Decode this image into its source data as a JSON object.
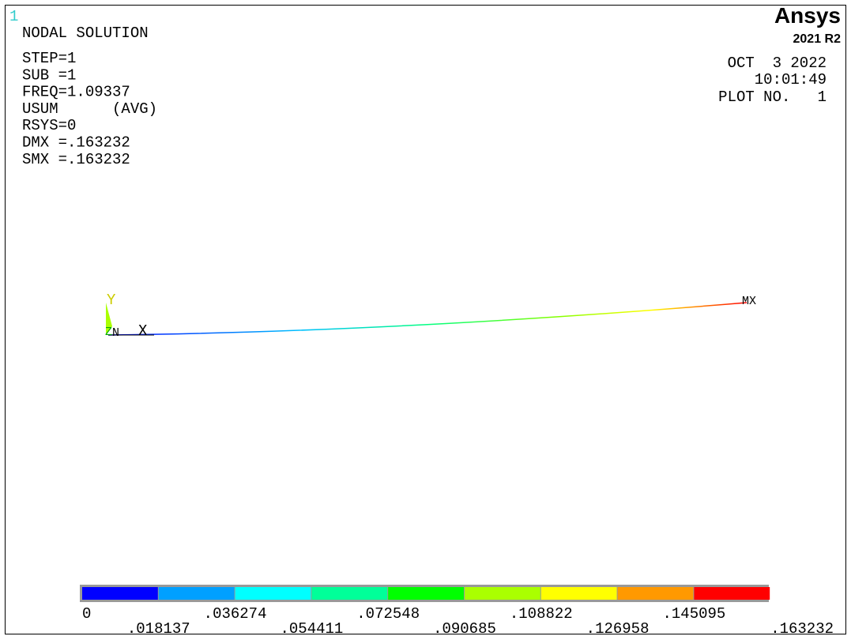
{
  "window_number": "1",
  "header": {
    "title": "NODAL SOLUTION",
    "info": [
      "STEP=1",
      "SUB =1",
      "FREQ=1.09337",
      "USUM      (AVG)",
      "RSYS=0",
      "DMX =.163232",
      "SMX =.163232"
    ]
  },
  "brand": {
    "name": "Ansys",
    "version": "2021 R2"
  },
  "stamp": {
    "date": "OCT  3 2022",
    "time": "10:01:49",
    "plot": "PLOT NO.   1"
  },
  "triad": {
    "y": "Y",
    "x": "X",
    "z": "Z",
    "node": "N"
  },
  "max_marker": "MX",
  "legend": {
    "colors": [
      "#0000ff",
      "#00a0ff",
      "#00ffff",
      "#00ff99",
      "#00ff00",
      "#aaff00",
      "#ffff00",
      "#ff9900",
      "#ff0000"
    ],
    "labels": [
      "0",
      ".018137",
      ".036274",
      ".054411",
      ".072548",
      ".090685",
      ".108822",
      ".126958",
      ".145095",
      ".163232"
    ]
  }
}
